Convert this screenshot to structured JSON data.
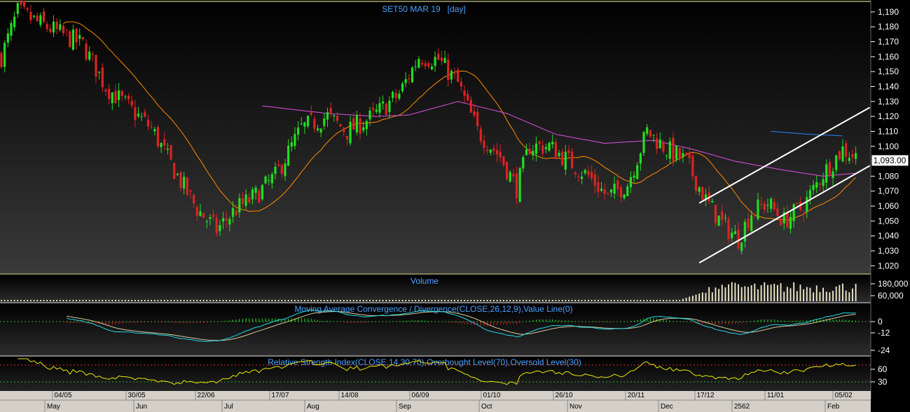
{
  "colors": {
    "up": "#22dd22",
    "down": "#dd2222",
    "ma_fast": "#ff8a00",
    "ma_slow": "#e050e0",
    "ma_long": "#2288ff",
    "channel": "#ffffff",
    "macd": "#22d8e8",
    "signal": "#d6c89a",
    "rsi": "#e8e800",
    "volume": "#f5f0d0"
  },
  "chart_data": [
    {
      "type": "candlestick",
      "title": "SET50 MAR 19   [day]",
      "ylim": [
        1015,
        1197
      ],
      "yticks": [
        "1,020",
        "1,030",
        "1,040",
        "1,050",
        "1,060",
        "1,070",
        "1,080",
        "1,090",
        "1,100",
        "1,110",
        "1,120",
        "1,130",
        "1,140",
        "1,150",
        "1,160",
        "1,170",
        "1,180",
        "1,190"
      ],
      "last_price": "1,093.00",
      "x_labels_top": [
        "04/05",
        "30/05",
        "22/06",
        "17/07",
        "14/08",
        "06/09",
        "01/10",
        "26/10",
        "20/11",
        "17/12",
        "11/01",
        "05/02"
      ],
      "x_labels_bottom": [
        "May",
        "Jun",
        "Jul",
        "Aug",
        "Sep",
        "Oct",
        "Nov",
        "Dec",
        "2562",
        "Feb"
      ],
      "trend_anchors": [
        [
          0,
          1160
        ],
        [
          5,
          1190
        ],
        [
          12,
          1182
        ],
        [
          25,
          1168
        ],
        [
          32,
          1140
        ],
        [
          38,
          1128
        ],
        [
          46,
          1112
        ],
        [
          54,
          1080
        ],
        [
          60,
          1058
        ],
        [
          66,
          1044
        ],
        [
          72,
          1058
        ],
        [
          78,
          1067
        ],
        [
          84,
          1080
        ],
        [
          92,
          1112
        ],
        [
          100,
          1120
        ],
        [
          106,
          1110
        ],
        [
          114,
          1120
        ],
        [
          122,
          1135
        ],
        [
          128,
          1160
        ],
        [
          134,
          1158
        ],
        [
          140,
          1142
        ],
        [
          146,
          1110
        ],
        [
          153,
          1093
        ],
        [
          158,
          1072
        ],
        [
          162,
          1100
        ],
        [
          168,
          1100
        ],
        [
          174,
          1090
        ],
        [
          180,
          1080
        ],
        [
          186,
          1066
        ],
        [
          192,
          1075
        ],
        [
          198,
          1110
        ],
        [
          204,
          1098
        ],
        [
          210,
          1090
        ],
        [
          216,
          1064
        ],
        [
          221,
          1048
        ],
        [
          226,
          1038
        ],
        [
          230,
          1056
        ],
        [
          235,
          1062
        ],
        [
          240,
          1050
        ],
        [
          246,
          1060
        ],
        [
          252,
          1082
        ],
        [
          258,
          1098
        ],
        [
          262,
          1093
        ]
      ],
      "ma_slow_anchors": [
        [
          80,
          1127
        ],
        [
          100,
          1122
        ],
        [
          115,
          1120
        ],
        [
          125,
          1121
        ],
        [
          140,
          1130
        ],
        [
          155,
          1122
        ],
        [
          170,
          1108
        ],
        [
          185,
          1102
        ],
        [
          200,
          1104
        ],
        [
          212,
          1098
        ],
        [
          225,
          1090
        ],
        [
          240,
          1084
        ],
        [
          252,
          1080
        ],
        [
          262,
          1082
        ]
      ],
      "ma_long_anchors": [
        [
          236,
          1110
        ],
        [
          248,
          1108
        ],
        [
          258,
          1107
        ]
      ],
      "channel_lines": [
        [
          [
            214,
            1062
          ],
          [
            262,
            1122
          ]
        ],
        [
          [
            214,
            1022
          ],
          [
            262,
            1083
          ]
        ]
      ]
    },
    {
      "type": "bar",
      "title": "Volume",
      "yticks": [
        "180,000",
        "60,000"
      ]
    },
    {
      "type": "line",
      "title": "Moving Average Convergence / Divergence(CLOSE,26,12,9),Value Line(0)",
      "yticks": [
        "0",
        "-12",
        "-24"
      ]
    },
    {
      "type": "line",
      "title": "Relative Strength Index(CLOSE,14,30,70),Overbought Level(70),Oversold Level(30)",
      "yticks": [
        "60",
        "30"
      ]
    }
  ]
}
